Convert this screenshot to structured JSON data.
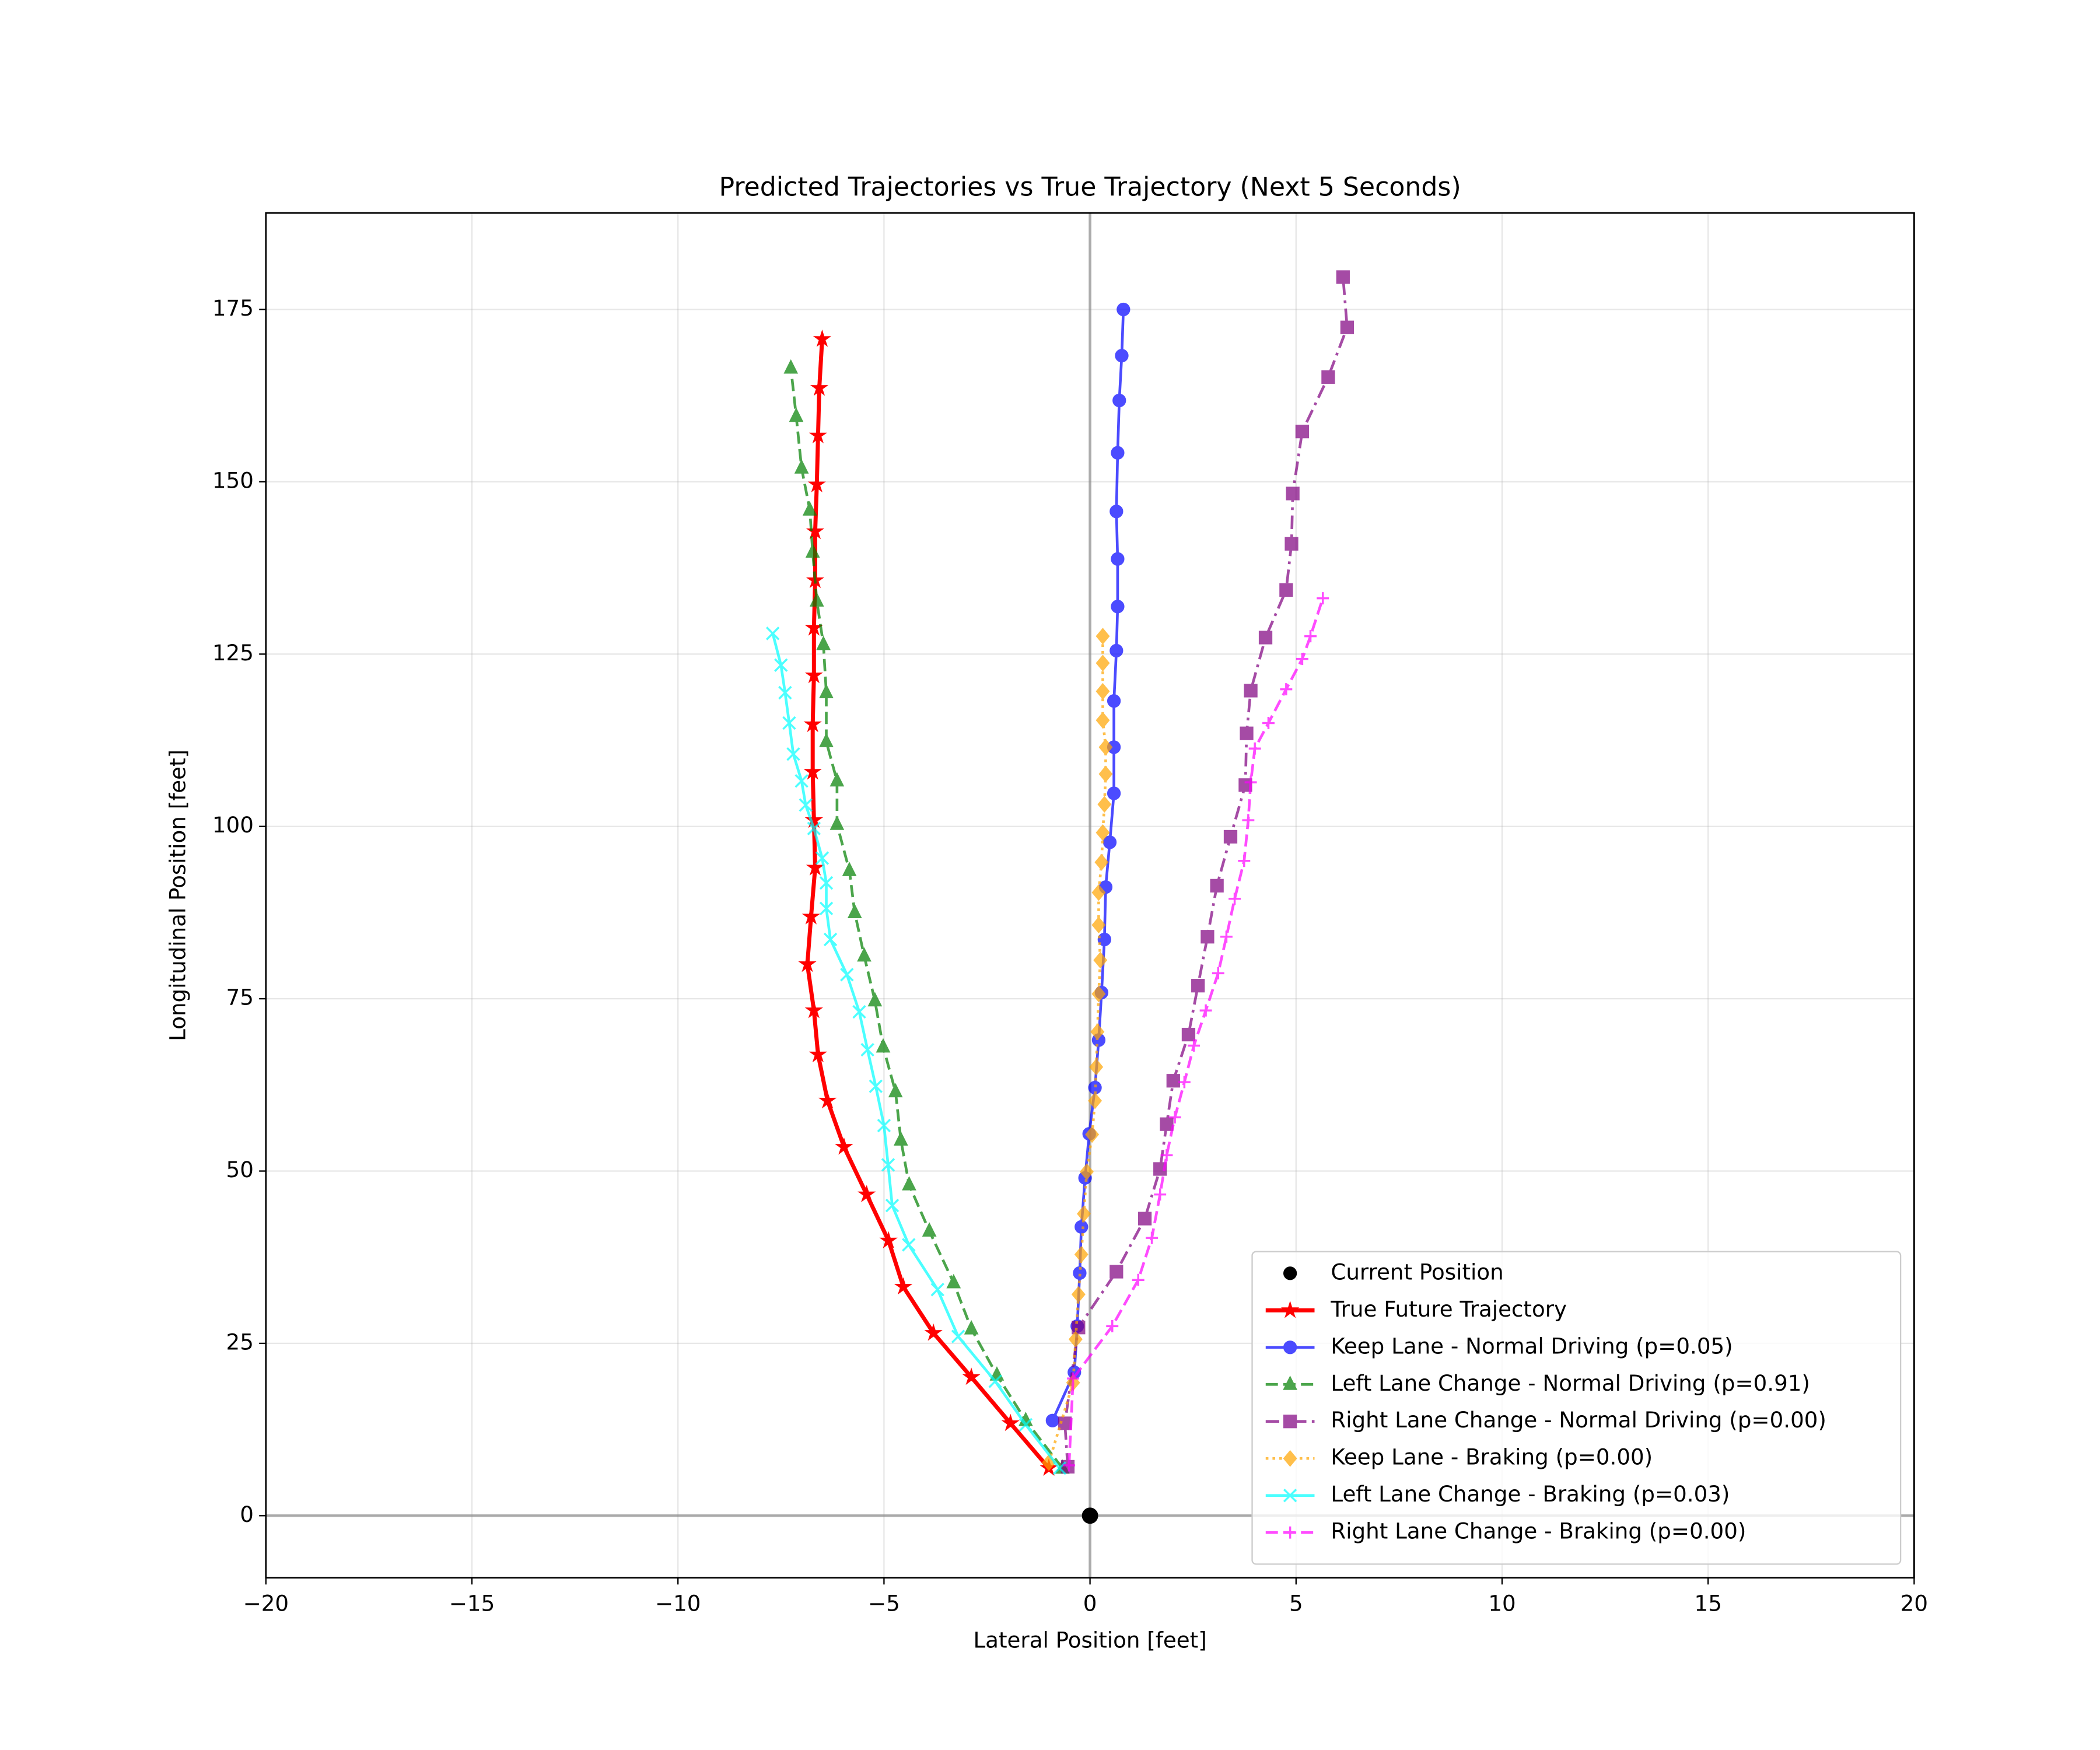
{
  "chart_data": {
    "type": "line",
    "title": "Predicted Trajectories vs True Trajectory (Next 5 Seconds)",
    "x_label": "Lateral Position [feet]",
    "y_label": "Longitudinal Position [feet]",
    "xlim": [
      -20,
      20
    ],
    "ylim": [
      -9,
      189
    ],
    "xticks": [
      {
        "value": -20,
        "label": "−20"
      },
      {
        "value": -15,
        "label": "−15"
      },
      {
        "value": -10,
        "label": "−10"
      },
      {
        "value": -5,
        "label": "−5"
      },
      0,
      5,
      10,
      15,
      20
    ],
    "yticks": [
      0,
      25,
      50,
      75,
      100,
      125,
      150,
      175
    ],
    "grid": true,
    "reference_lines": {
      "x": 0,
      "y": 0
    },
    "legend": "lower right",
    "series": [
      {
        "name": "Current Position",
        "color": "#000000",
        "marker": "circle",
        "linestyle": "none",
        "x": [
          0
        ],
        "values": [
          0
        ]
      },
      {
        "name": "True Future Trajectory",
        "color": "#ff0000",
        "marker": "star",
        "linestyle": "solid",
        "x": [
          -1.0,
          -1.93,
          -2.88,
          -3.8,
          -4.53,
          -4.89,
          -5.42,
          -5.97,
          -6.37,
          -6.6,
          -6.7,
          -6.86,
          -6.77,
          -6.67,
          -6.7,
          -6.73,
          -6.73,
          -6.7,
          -6.7,
          -6.67,
          -6.67,
          -6.63,
          -6.6,
          -6.57,
          -6.5
        ],
        "values": [
          6.9,
          13.4,
          20.1,
          26.5,
          33.2,
          39.9,
          46.6,
          53.5,
          60.2,
          66.9,
          73.3,
          80.0,
          86.9,
          94.0,
          100.9,
          107.9,
          114.8,
          121.9,
          128.8,
          135.7,
          142.8,
          149.6,
          156.7,
          163.6,
          170.7
        ]
      },
      {
        "name": "Keep Lane - Normal Driving (p=0.05)",
        "color": "#0000ff",
        "marker": "circle",
        "linestyle": "solid",
        "x": [
          -0.91,
          -0.38,
          -0.31,
          -0.25,
          -0.21,
          -0.12,
          -0.02,
          0.12,
          0.21,
          0.28,
          0.35,
          0.38,
          0.48,
          0.58,
          0.58,
          0.58,
          0.64,
          0.67,
          0.67,
          0.64,
          0.67,
          0.71,
          0.77,
          0.81
        ],
        "values": [
          13.8,
          20.8,
          27.5,
          35.2,
          41.9,
          49.0,
          55.4,
          62.1,
          69.0,
          75.9,
          83.6,
          91.2,
          97.7,
          104.8,
          111.5,
          118.2,
          125.5,
          131.9,
          138.8,
          145.7,
          154.2,
          161.8,
          168.3,
          175.0
        ]
      },
      {
        "name": "Left Lane Change - Normal Driving (p=0.91)",
        "color": "#008000",
        "marker": "triangle",
        "linestyle": "dashed",
        "x": [
          -0.67,
          -1.56,
          -2.26,
          -2.88,
          -3.31,
          -3.9,
          -4.39,
          -4.59,
          -4.72,
          -5.02,
          -5.22,
          -5.48,
          -5.71,
          -5.84,
          -6.14,
          -6.14,
          -6.4,
          -6.4,
          -6.47,
          -6.63,
          -6.73,
          -6.8,
          -7.0,
          -7.13,
          -7.26
        ],
        "values": [
          6.9,
          13.8,
          20.4,
          27.1,
          33.8,
          41.3,
          48.0,
          54.5,
          61.5,
          68.0,
          74.7,
          81.2,
          87.5,
          93.6,
          100.3,
          106.6,
          112.3,
          119.4,
          126.4,
          132.7,
          139.8,
          145.9,
          152.0,
          159.5,
          166.5
        ]
      },
      {
        "name": "Right Lane Change - Normal Driving (p=0.00)",
        "color": "#800080",
        "marker": "square",
        "linestyle": "dashdot",
        "x": [
          -0.54,
          -0.61,
          -0.28,
          0.64,
          1.33,
          1.7,
          1.86,
          2.02,
          2.39,
          2.62,
          2.85,
          3.08,
          3.41,
          3.77,
          3.8,
          3.9,
          4.26,
          4.76,
          4.89,
          4.92,
          5.15,
          5.78,
          6.24,
          6.14
        ],
        "values": [
          7.1,
          13.4,
          27.3,
          35.4,
          43.1,
          50.3,
          56.8,
          63.1,
          69.8,
          76.9,
          84.0,
          91.4,
          98.5,
          106.0,
          113.5,
          119.7,
          127.4,
          134.3,
          141.0,
          148.3,
          157.3,
          165.2,
          172.4,
          179.7
        ]
      },
      {
        "name": "Keep Lane - Braking (p=0.00)",
        "color": "#ffa500",
        "marker": "diamond",
        "linestyle": "dotted",
        "x": [
          -1.0,
          -0.41,
          -0.35,
          -0.28,
          -0.21,
          -0.15,
          -0.08,
          0.05,
          0.12,
          0.15,
          0.18,
          0.21,
          0.25,
          0.21,
          0.21,
          0.28,
          0.31,
          0.35,
          0.38,
          0.38,
          0.31,
          0.31,
          0.31,
          0.31
        ],
        "values": [
          7.7,
          19.3,
          25.6,
          32.1,
          37.9,
          43.8,
          49.9,
          55.3,
          60.2,
          65.1,
          70.2,
          75.7,
          80.6,
          85.7,
          90.4,
          94.8,
          99.1,
          103.2,
          107.6,
          111.5,
          115.4,
          119.6,
          123.7,
          127.6
        ]
      },
      {
        "name": "Left Lane Change - Braking (p=0.03)",
        "color": "#00ffff",
        "marker": "x",
        "linestyle": "solid",
        "x": [
          -0.74,
          -1.56,
          -2.3,
          -3.2,
          -3.7,
          -4.4,
          -4.8,
          -4.9,
          -5.0,
          -5.2,
          -5.4,
          -5.6,
          -5.9,
          -6.3,
          -6.4,
          -6.4,
          -6.5,
          -6.7,
          -6.9,
          -7.0,
          -7.2,
          -7.3,
          -7.4,
          -7.5,
          -7.7
        ],
        "values": [
          6.9,
          13.2,
          19.5,
          26.0,
          32.8,
          39.3,
          45.0,
          50.9,
          56.6,
          62.3,
          67.6,
          73.1,
          78.5,
          83.6,
          88.1,
          91.8,
          95.4,
          99.7,
          103.1,
          106.6,
          110.5,
          115.0,
          119.4,
          123.4,
          128.0
        ]
      },
      {
        "name": "Right Lane Change - Braking (p=0.00)",
        "color": "#ff00ff",
        "marker": "plus",
        "linestyle": "dashed",
        "x": [
          -0.51,
          -0.41,
          0.54,
          1.17,
          1.5,
          1.7,
          1.86,
          2.06,
          2.29,
          2.52,
          2.81,
          3.11,
          3.31,
          3.51,
          3.74,
          3.84,
          3.9,
          4.0,
          4.33,
          4.76,
          5.15,
          5.35,
          5.65
        ],
        "values": [
          7.3,
          19.9,
          27.5,
          34.2,
          40.3,
          46.6,
          52.3,
          57.8,
          62.9,
          68.2,
          73.3,
          78.7,
          84.0,
          89.5,
          95.0,
          100.9,
          106.4,
          111.3,
          115.0,
          119.9,
          124.3,
          127.6,
          133.1
        ]
      }
    ]
  }
}
